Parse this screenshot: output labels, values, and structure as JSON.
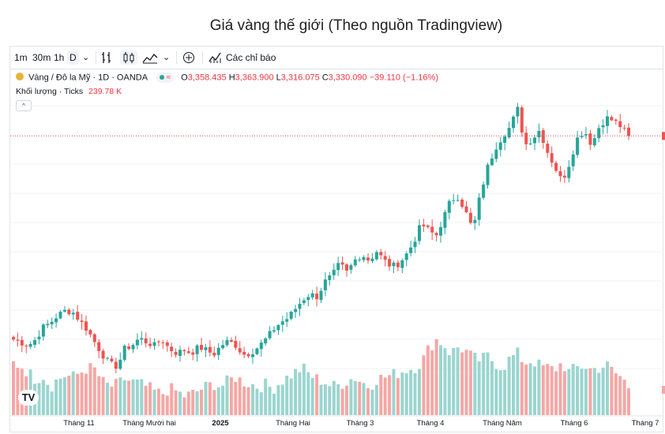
{
  "title": "Giá vàng thế giới (Theo nguồn Tradingview)",
  "toolbar": {
    "intervals": [
      "1m",
      "30m",
      "1h",
      "D"
    ],
    "chevron": "⌄",
    "indicators_label": "Các chỉ báo"
  },
  "legend": {
    "symbol": "Vàng / Đô la Mỹ · 1D · OANDA",
    "open_label": "O",
    "open": "3,358.435",
    "high_label": "H",
    "high": "3,363.900",
    "low_label": "L",
    "low": "3,316.075",
    "close_label": "C",
    "close": "3,330.090",
    "change": "−39.110 (−1.16%)",
    "pill_icon": "≈",
    "volume_label": "Khối lượng · Ticks",
    "volume_value": "239.78 K"
  },
  "logo_text": "TV",
  "colors": {
    "up": "#26a69a",
    "down": "#ef5350",
    "up_volume": "#9bd5cf",
    "down_volume": "#f5a7a5"
  },
  "chart_data": {
    "type": "candlestick",
    "title": "Giá vàng thế giới (Theo nguồn Tradingview)",
    "x_tick_labels": [
      "Tháng 11",
      "Tháng Mười hai",
      "2025",
      "Tháng Hai",
      "Tháng 3",
      "Tháng 4",
      "Tháng Năm",
      "Tháng 6",
      "Tháng 7"
    ],
    "last_close": 3330.09,
    "grid": true,
    "price_anchors": [
      2660,
      2650,
      2640,
      2660,
      2700,
      2715,
      2740,
      2755,
      2750,
      2720,
      2690,
      2650,
      2610,
      2580,
      2570,
      2630,
      2640,
      2665,
      2650,
      2640,
      2660,
      2630,
      2615,
      2625,
      2615,
      2635,
      2625,
      2610,
      2640,
      2655,
      2640,
      2610,
      2615,
      2635,
      2660,
      2690,
      2715,
      2730,
      2760,
      2790,
      2810,
      2800,
      2850,
      2870,
      2910,
      2880,
      2920,
      2940,
      2920,
      2950,
      2920,
      2900,
      2910,
      2940,
      2980,
      3040,
      3020,
      3000,
      3060,
      3120,
      3130,
      3080,
      3020,
      3140,
      3230,
      3290,
      3330,
      3360,
      3420,
      3300,
      3320,
      3350,
      3280,
      3230,
      3180,
      3240,
      3320,
      3350,
      3300,
      3360,
      3390,
      3380,
      3360,
      3330
    ],
    "volume_anchors": [
      0.55,
      0.52,
      0.45,
      0.38,
      0.42,
      0.3,
      0.38,
      0.42,
      0.4,
      0.45,
      0.5,
      0.48,
      0.35,
      0.3,
      0.32,
      0.38,
      0.35,
      0.33,
      0.3,
      0.25,
      0.22,
      0.28,
      0.25,
      0.2,
      0.22,
      0.26,
      0.3,
      0.33,
      0.3,
      0.36,
      0.4,
      0.35,
      0.33,
      0.3,
      0.32,
      0.28,
      0.35,
      0.4,
      0.45,
      0.5,
      0.42,
      0.38,
      0.35,
      0.3,
      0.32,
      0.36,
      0.4,
      0.35,
      0.3,
      0.38,
      0.4,
      0.42,
      0.45,
      0.48,
      0.5,
      0.55,
      0.7,
      0.8,
      0.75,
      0.65,
      0.72,
      0.68,
      0.6,
      0.58,
      0.62,
      0.55,
      0.5,
      0.6,
      0.65,
      0.55,
      0.58,
      0.52,
      0.5,
      0.48,
      0.55,
      0.45,
      0.5,
      0.52,
      0.48,
      0.5,
      0.53,
      0.45,
      0.4,
      0.3
    ]
  }
}
